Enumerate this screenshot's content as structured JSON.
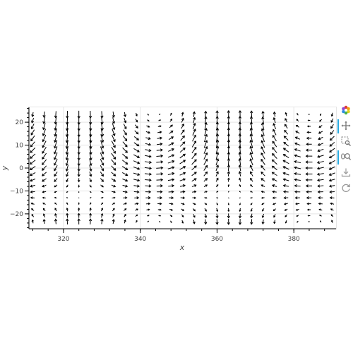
{
  "chart_data": {
    "type": "vector field (quiver)",
    "title": "",
    "xlabel": "x",
    "ylabel": "y",
    "xlim": [
      311,
      391
    ],
    "ylim": [
      -26.5,
      26.5
    ],
    "xticks": [
      320,
      340,
      360,
      380
    ],
    "yticks": [
      -20,
      -10,
      0,
      10,
      20
    ],
    "grid": true,
    "legend": "none",
    "field": {
      "x_start": 312,
      "x_step": 3,
      "x_count": 27,
      "y_start": -23.4,
      "y_step": 2.6,
      "y_count": 19,
      "u": "cos(2*pi*(x-344)/80) * cos(pi*y/52)",
      "v": "sin(2*pi*(x-344)/80) * sin(pi*y/52) + 0.9 * sin(2*pi*(x-344)/80) * cos(pi*y/52)",
      "max_magnitude": 1.3
    },
    "arrow_color": "#000000"
  },
  "toolbar": {
    "tools": [
      {
        "name": "bokeh-logo-icon",
        "label": "Bokeh",
        "active": false
      },
      {
        "name": "pan-tool-icon",
        "label": "Pan",
        "active": true
      },
      {
        "name": "box-zoom-tool-icon",
        "label": "Box Zoom",
        "active": false
      },
      {
        "name": "wheel-zoom-tool-icon",
        "label": "Wheel Zoom",
        "active": true
      },
      {
        "name": "save-tool-icon",
        "label": "Save",
        "active": false
      },
      {
        "name": "reset-tool-icon",
        "label": "Reset",
        "active": false
      }
    ],
    "accent_color": "#26aae1"
  }
}
